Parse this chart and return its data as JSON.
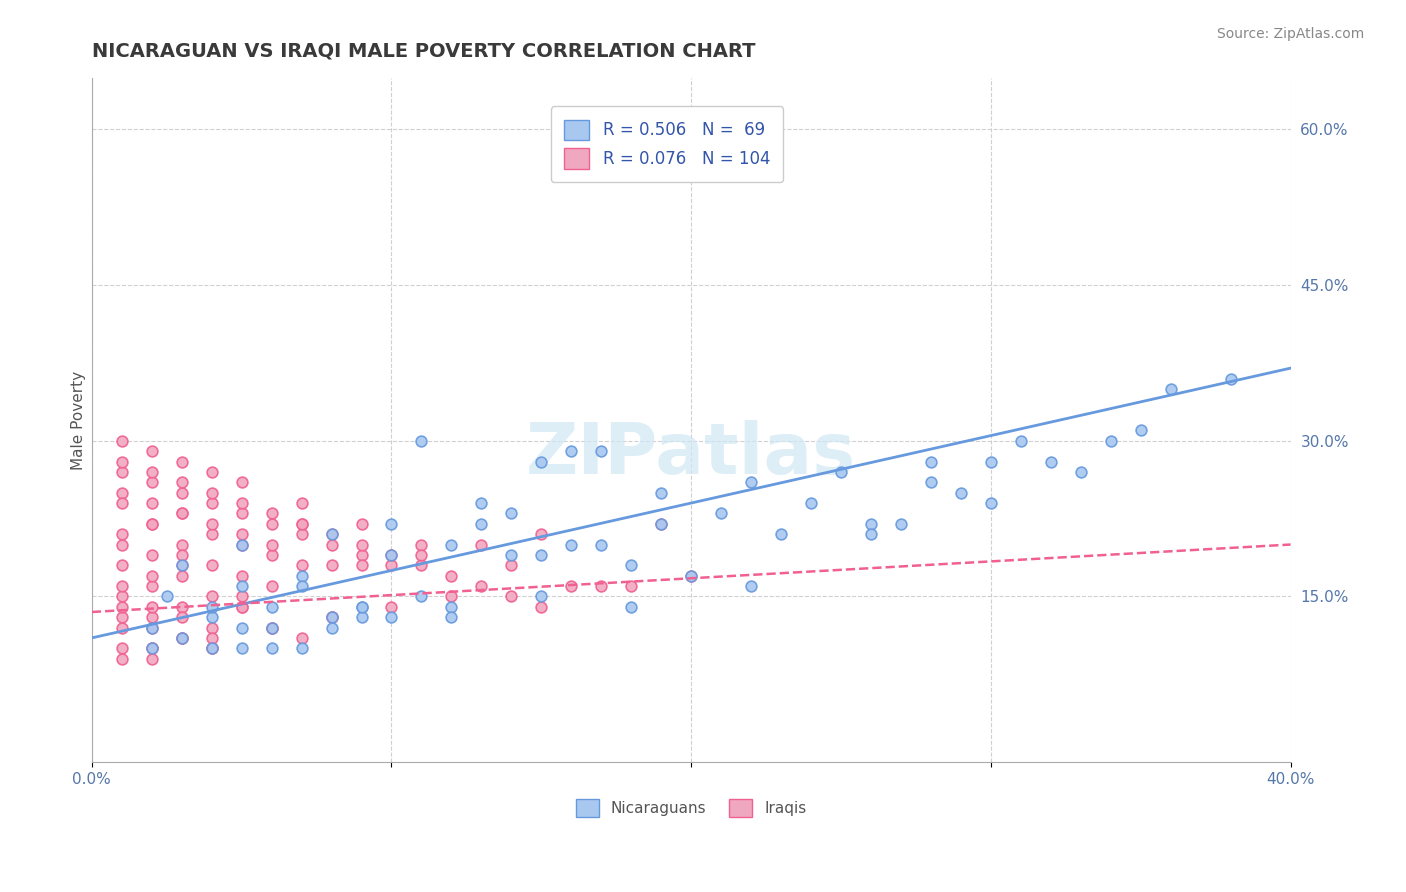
{
  "title": "NICARAGUAN VS IRAQI MALE POVERTY CORRELATION CHART",
  "source_text": "Source: ZipAtlas.com",
  "xlabel": "",
  "ylabel": "Male Poverty",
  "xlim": [
    0.0,
    0.4
  ],
  "ylim": [
    -0.01,
    0.65
  ],
  "x_ticks": [
    0.0,
    0.1,
    0.2,
    0.3,
    0.4
  ],
  "x_tick_labels": [
    "0.0%",
    "",
    "",
    "",
    "40.0%"
  ],
  "y_tick_labels_right": [
    "15.0%",
    "30.0%",
    "45.0%",
    "60.0%"
  ],
  "y_ticks_right": [
    0.15,
    0.3,
    0.45,
    0.6
  ],
  "title_color": "#3a3a3a",
  "title_fontsize": 14,
  "background_color": "#ffffff",
  "grid_color": "#d0d0d0",
  "watermark_text": "ZIPatlas",
  "legend_r1": "R = 0.506",
  "legend_n1": "N =  69",
  "legend_r2": "R = 0.076",
  "legend_n2": "N = 104",
  "nicaraguan_color": "#a8c8f0",
  "iraqi_color": "#f0a8c0",
  "nicaraguan_line_color": "#6699dd",
  "iraqi_line_color": "#f06090",
  "nicaraguan_regression": [
    0.0,
    0.4,
    0.11,
    0.37
  ],
  "iraqi_regression": [
    0.0,
    0.4,
    0.135,
    0.2
  ],
  "scatter_nicaraguan_x": [
    0.02,
    0.04,
    0.06,
    0.025,
    0.05,
    0.07,
    0.09,
    0.12,
    0.03,
    0.05,
    0.08,
    0.1,
    0.13,
    0.15,
    0.02,
    0.06,
    0.09,
    0.11,
    0.14,
    0.17,
    0.04,
    0.07,
    0.1,
    0.13,
    0.16,
    0.19,
    0.22,
    0.25,
    0.28,
    0.31,
    0.03,
    0.08,
    0.12,
    0.15,
    0.18,
    0.2,
    0.23,
    0.26,
    0.29,
    0.33,
    0.05,
    0.09,
    0.14,
    0.17,
    0.21,
    0.24,
    0.27,
    0.3,
    0.11,
    0.16,
    0.35,
    0.32,
    0.05,
    0.08,
    0.1,
    0.06,
    0.04,
    0.12,
    0.15,
    0.18,
    0.22,
    0.26,
    0.3,
    0.34,
    0.38,
    0.07,
    0.19,
    0.28,
    0.36
  ],
  "scatter_nicaraguan_y": [
    0.12,
    0.13,
    0.14,
    0.15,
    0.16,
    0.17,
    0.14,
    0.2,
    0.18,
    0.2,
    0.21,
    0.19,
    0.22,
    0.28,
    0.1,
    0.12,
    0.13,
    0.15,
    0.23,
    0.29,
    0.14,
    0.16,
    0.22,
    0.24,
    0.2,
    0.22,
    0.26,
    0.27,
    0.28,
    0.3,
    0.11,
    0.13,
    0.14,
    0.19,
    0.18,
    0.17,
    0.21,
    0.22,
    0.25,
    0.27,
    0.12,
    0.14,
    0.19,
    0.2,
    0.23,
    0.24,
    0.22,
    0.28,
    0.3,
    0.29,
    0.31,
    0.28,
    0.1,
    0.12,
    0.13,
    0.1,
    0.1,
    0.13,
    0.15,
    0.14,
    0.16,
    0.21,
    0.24,
    0.3,
    0.36,
    0.1,
    0.25,
    0.26,
    0.35
  ],
  "scatter_iraqi_x": [
    0.01,
    0.02,
    0.03,
    0.01,
    0.02,
    0.03,
    0.04,
    0.01,
    0.02,
    0.03,
    0.04,
    0.05,
    0.01,
    0.02,
    0.03,
    0.04,
    0.05,
    0.06,
    0.01,
    0.02,
    0.03,
    0.04,
    0.05,
    0.06,
    0.07,
    0.01,
    0.02,
    0.03,
    0.04,
    0.05,
    0.06,
    0.07,
    0.08,
    0.01,
    0.02,
    0.03,
    0.04,
    0.05,
    0.06,
    0.07,
    0.08,
    0.09,
    0.1,
    0.01,
    0.02,
    0.03,
    0.04,
    0.05,
    0.06,
    0.07,
    0.08,
    0.09,
    0.1,
    0.11,
    0.12,
    0.13,
    0.14,
    0.15,
    0.17,
    0.2,
    0.01,
    0.02,
    0.03,
    0.04,
    0.05,
    0.07,
    0.09,
    0.11,
    0.14,
    0.18,
    0.01,
    0.02,
    0.03,
    0.04,
    0.06,
    0.08,
    0.01,
    0.02,
    0.03,
    0.05,
    0.01,
    0.02,
    0.03,
    0.01,
    0.02,
    0.01,
    0.03,
    0.02,
    0.04,
    0.06,
    0.08,
    0.1,
    0.12,
    0.16,
    0.01,
    0.02,
    0.04,
    0.07,
    0.05,
    0.09,
    0.11,
    0.13,
    0.15,
    0.19
  ],
  "scatter_iraqi_y": [
    0.1,
    0.1,
    0.11,
    0.12,
    0.13,
    0.14,
    0.12,
    0.15,
    0.16,
    0.17,
    0.15,
    0.14,
    0.18,
    0.19,
    0.2,
    0.18,
    0.17,
    0.16,
    0.21,
    0.22,
    0.23,
    0.21,
    0.2,
    0.19,
    0.18,
    0.25,
    0.24,
    0.23,
    0.22,
    0.21,
    0.2,
    0.22,
    0.18,
    0.27,
    0.26,
    0.25,
    0.24,
    0.23,
    0.22,
    0.21,
    0.2,
    0.19,
    0.18,
    0.28,
    0.27,
    0.26,
    0.25,
    0.24,
    0.23,
    0.22,
    0.21,
    0.2,
    0.19,
    0.18,
    0.17,
    0.16,
    0.15,
    0.14,
    0.16,
    0.17,
    0.3,
    0.29,
    0.28,
    0.27,
    0.26,
    0.24,
    0.22,
    0.2,
    0.18,
    0.16,
    0.13,
    0.12,
    0.11,
    0.1,
    0.12,
    0.13,
    0.14,
    0.14,
    0.13,
    0.14,
    0.16,
    0.17,
    0.18,
    0.2,
    0.22,
    0.24,
    0.19,
    0.1,
    0.11,
    0.12,
    0.13,
    0.14,
    0.15,
    0.16,
    0.09,
    0.09,
    0.1,
    0.11,
    0.15,
    0.18,
    0.19,
    0.2,
    0.21,
    0.22
  ]
}
